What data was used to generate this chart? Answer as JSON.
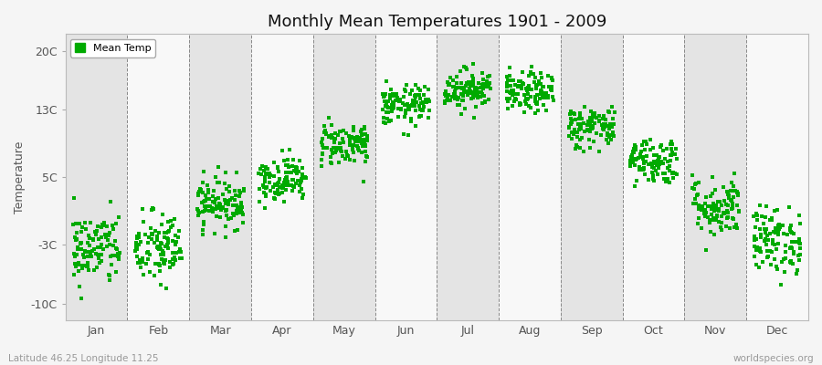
{
  "title": "Monthly Mean Temperatures 1901 - 2009",
  "ylabel": "Temperature",
  "xlabel_bottom_left": "Latitude 46.25 Longitude 11.25",
  "xlabel_bottom_right": "worldspecies.org",
  "ytick_labels": [
    "20C",
    "13C",
    "5C",
    "-3C",
    "-10C"
  ],
  "ytick_values": [
    20,
    13,
    5,
    -3,
    -10
  ],
  "ylim": [
    -12,
    22
  ],
  "months": [
    "Jan",
    "Feb",
    "Mar",
    "Apr",
    "May",
    "Jun",
    "Jul",
    "Aug",
    "Sep",
    "Oct",
    "Nov",
    "Dec"
  ],
  "dot_color": "#00aa00",
  "dot_size": 3,
  "background_color": "#f5f5f5",
  "plot_bg_color": "#f0f0f0",
  "band_light": "#f8f8f8",
  "band_dark": "#e4e4e4",
  "legend_label": "Mean Temp",
  "title_fontsize": 13,
  "axis_fontsize": 9,
  "tick_fontsize": 9,
  "n_years": 109,
  "mean_temps": [
    -3.5,
    -3.5,
    2.0,
    4.8,
    9.0,
    13.5,
    15.5,
    15.0,
    11.0,
    7.0,
    1.5,
    -2.5
  ],
  "std_temps": [
    2.2,
    2.2,
    1.5,
    1.3,
    1.3,
    1.2,
    1.2,
    1.2,
    1.3,
    1.4,
    1.8,
    2.0
  ]
}
